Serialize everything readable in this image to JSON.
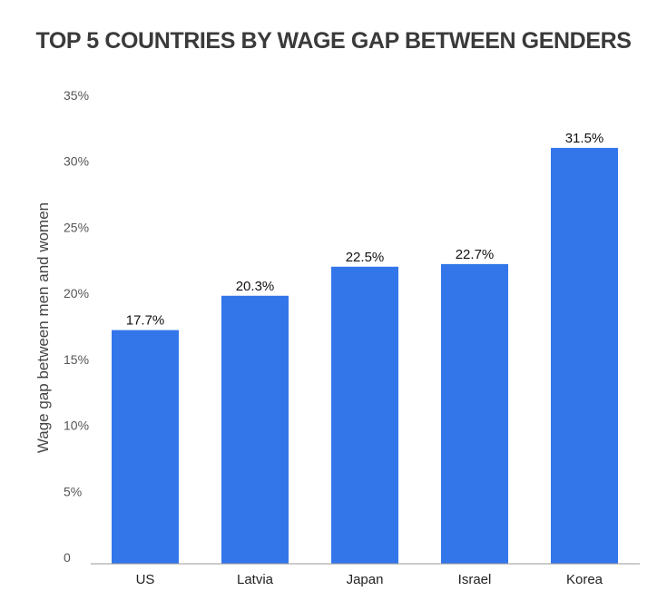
{
  "chart_data": {
    "type": "bar",
    "title": "TOP 5 COUNTRIES BY WAGE GAP BETWEEN GENDERS",
    "ylabel": "Wage gap between men and women",
    "xlabel": "",
    "categories": [
      "US",
      "Latvia",
      "Japan",
      "Israel",
      "Korea"
    ],
    "values": [
      17.7,
      20.3,
      22.5,
      22.7,
      31.5
    ],
    "data_labels": [
      "17.7%",
      "20.3%",
      "22.5%",
      "22.7%",
      "31.5%"
    ],
    "ylim": [
      0,
      35
    ],
    "yticks": [
      0,
      5,
      10,
      15,
      20,
      25,
      30,
      35
    ],
    "ytick_labels": [
      "0",
      "5%",
      "10%",
      "15%",
      "20%",
      "25%",
      "30%",
      "35%"
    ],
    "grid": false,
    "legend": "none",
    "bar_color": "#3276ea"
  }
}
